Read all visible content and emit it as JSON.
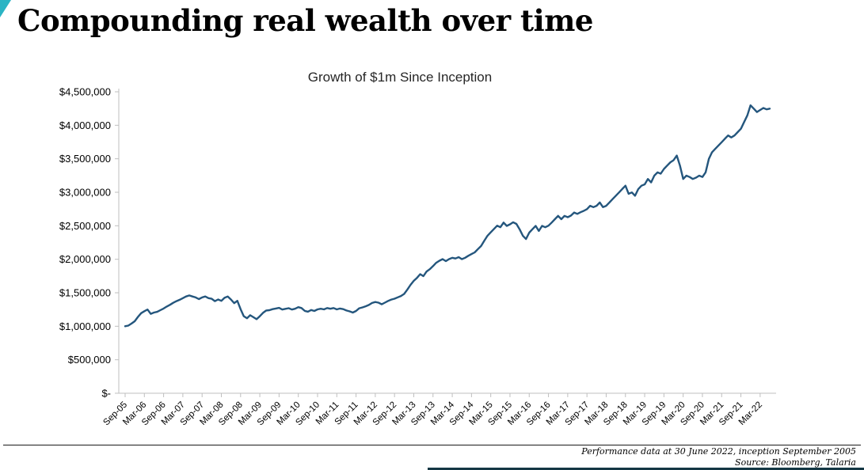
{
  "page": {
    "title": "Compounding real wealth over time",
    "accent_color": "#2BB4C4"
  },
  "footer": {
    "note": "Performance data at 30 June 2022, inception September 2005",
    "source": "Source: Bloomberg, Talaria"
  },
  "chart_data": {
    "type": "line",
    "title": "Growth of $1m Since Inception",
    "series_name": "Growth of $1m",
    "x_start": "Sep-05",
    "x_end": "Jun-22",
    "x_frequency": "monthly",
    "xtick_step": 6,
    "xtick_labels": [
      "Sep-05",
      "Mar-06",
      "Sep-06",
      "Mar-07",
      "Sep-07",
      "Mar-08",
      "Sep-08",
      "Mar-09",
      "Sep-09",
      "Mar-10",
      "Sep-10",
      "Mar-11",
      "Sep-11",
      "Mar-12",
      "Sep-12",
      "Mar-13",
      "Sep-13",
      "Mar-14",
      "Sep-14",
      "Mar-15",
      "Sep-15",
      "Mar-16",
      "Sep-16",
      "Mar-17",
      "Sep-17",
      "Mar-18",
      "Sep-18",
      "Mar-19",
      "Sep-19",
      "Mar-20",
      "Sep-20",
      "Mar-21",
      "Sep-21",
      "Mar-22"
    ],
    "ytick_labels": [
      "$-",
      "$500,000",
      "$1,000,000",
      "$1,500,000",
      "$2,000,000",
      "$2,500,000",
      "$3,000,000",
      "$3,500,000",
      "$4,000,000",
      "$4,500,000"
    ],
    "ytick_step": 500000,
    "ylim": [
      0,
      4500000
    ],
    "grid": false,
    "legend": false,
    "line_color": "#24567D",
    "values": [
      1000000,
      1010000,
      1040000,
      1075000,
      1140000,
      1195000,
      1225000,
      1250000,
      1185000,
      1205000,
      1215000,
      1240000,
      1265000,
      1295000,
      1320000,
      1350000,
      1375000,
      1395000,
      1420000,
      1445000,
      1460000,
      1445000,
      1430000,
      1405000,
      1430000,
      1445000,
      1420000,
      1410000,
      1375000,
      1400000,
      1380000,
      1425000,
      1445000,
      1400000,
      1345000,
      1380000,
      1255000,
      1150000,
      1120000,
      1165000,
      1135000,
      1105000,
      1150000,
      1200000,
      1235000,
      1240000,
      1255000,
      1265000,
      1275000,
      1250000,
      1260000,
      1270000,
      1250000,
      1262000,
      1285000,
      1272000,
      1230000,
      1218000,
      1242000,
      1228000,
      1252000,
      1262000,
      1252000,
      1272000,
      1262000,
      1272000,
      1252000,
      1265000,
      1255000,
      1235000,
      1222000,
      1205000,
      1228000,
      1268000,
      1282000,
      1298000,
      1318000,
      1348000,
      1362000,
      1352000,
      1328000,
      1352000,
      1378000,
      1398000,
      1412000,
      1432000,
      1452000,
      1482000,
      1548000,
      1618000,
      1678000,
      1722000,
      1778000,
      1748000,
      1818000,
      1852000,
      1898000,
      1948000,
      1978000,
      2002000,
      1972000,
      2002000,
      2022000,
      2012000,
      2032000,
      2002000,
      2022000,
      2052000,
      2078000,
      2102000,
      2152000,
      2198000,
      2278000,
      2352000,
      2402000,
      2452000,
      2502000,
      2478000,
      2548000,
      2498000,
      2522000,
      2552000,
      2528000,
      2448000,
      2352000,
      2302000,
      2398000,
      2448000,
      2498000,
      2422000,
      2498000,
      2478000,
      2502000,
      2548000,
      2598000,
      2648000,
      2598000,
      2648000,
      2628000,
      2652000,
      2698000,
      2678000,
      2702000,
      2722000,
      2748000,
      2798000,
      2778000,
      2798000,
      2848000,
      2778000,
      2798000,
      2848000,
      2898000,
      2948000,
      2998000,
      3048000,
      3098000,
      2978000,
      2998000,
      2948000,
      3048000,
      3098000,
      3118000,
      3198000,
      3148000,
      3248000,
      3298000,
      3278000,
      3348000,
      3398000,
      3448000,
      3478000,
      3548000,
      3398000,
      3198000,
      3248000,
      3228000,
      3198000,
      3218000,
      3248000,
      3228000,
      3298000,
      3498000,
      3598000,
      3648000,
      3698000,
      3748000,
      3798000,
      3848000,
      3818000,
      3848000,
      3898000,
      3948000,
      4048000,
      4148000,
      4298000,
      4248000,
      4198000,
      4228000,
      4258000,
      4238000,
      4248000
    ]
  }
}
